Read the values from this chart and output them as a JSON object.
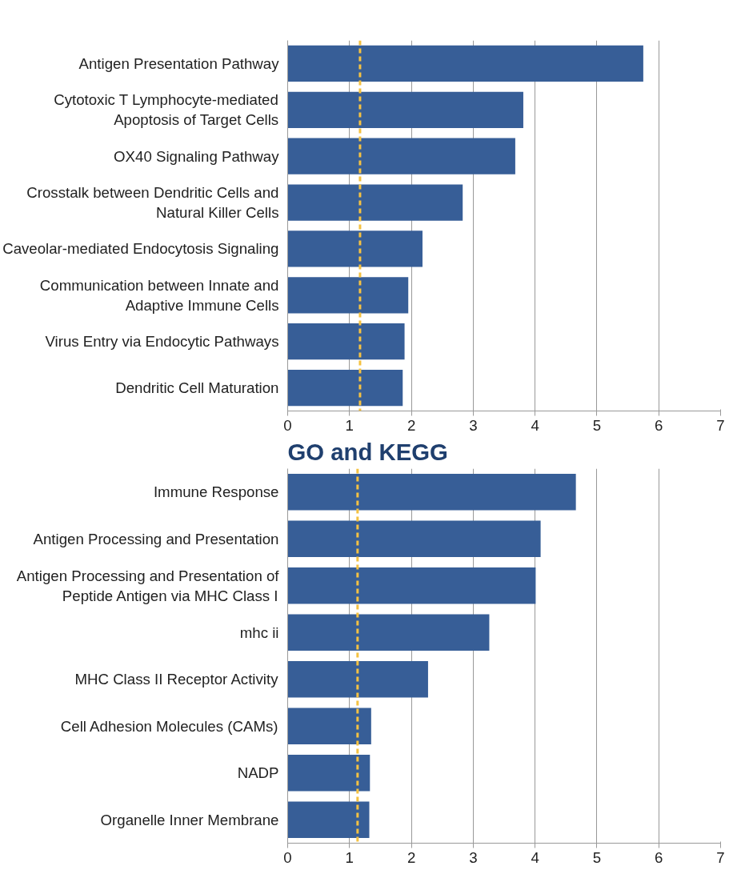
{
  "chart_data": [
    {
      "type": "bar",
      "orientation": "horizontal",
      "categories": [
        "Antigen Presentation Pathway",
        "Cytotoxic T Lymphocyte-mediated\nApoptosis of Target Cells",
        "OX40 Signaling Pathway",
        "Crosstalk between Dendritic Cells and\nNatural Killer Cells",
        "Caveolar-mediated Endocytosis Signaling",
        "Communication between Innate and\nAdaptive Immune Cells",
        "Virus Entry via Endocytic Pathways",
        "Dendritic Cell Maturation"
      ],
      "values": [
        5.75,
        3.81,
        3.68,
        2.83,
        2.18,
        1.95,
        1.89,
        1.86
      ],
      "color": "#375e97",
      "xlim": [
        0,
        7
      ],
      "xticks": [
        0,
        1,
        2,
        3,
        4,
        5,
        6,
        7
      ],
      "grid": "x",
      "ref_lines": [
        {
          "axis": "x",
          "value": 1.17,
          "color": "#f5c242",
          "line_style": "dashed"
        }
      ]
    },
    {
      "type": "bar",
      "orientation": "horizontal",
      "title": "GO and KEGG",
      "categories": [
        "Immune Response",
        "Antigen Processing and Presentation",
        "Antigen Processing and Presentation of\nPeptide Antigen via MHC Class I",
        "mhc ii",
        "MHC Class II Receptor Activity",
        "Cell Adhesion Molecules (CAMs)",
        "NADP",
        "Organelle Inner Membrane"
      ],
      "values": [
        4.66,
        4.09,
        4.01,
        3.26,
        2.27,
        1.35,
        1.33,
        1.32
      ],
      "color": "#375e97",
      "xlim": [
        0,
        7
      ],
      "xticks": [
        0,
        1,
        2,
        3,
        4,
        5,
        6,
        7
      ],
      "grid": "x",
      "ref_lines": [
        {
          "axis": "x",
          "value": 1.13,
          "color": "#f5c242",
          "line_style": "dashed"
        }
      ]
    }
  ]
}
